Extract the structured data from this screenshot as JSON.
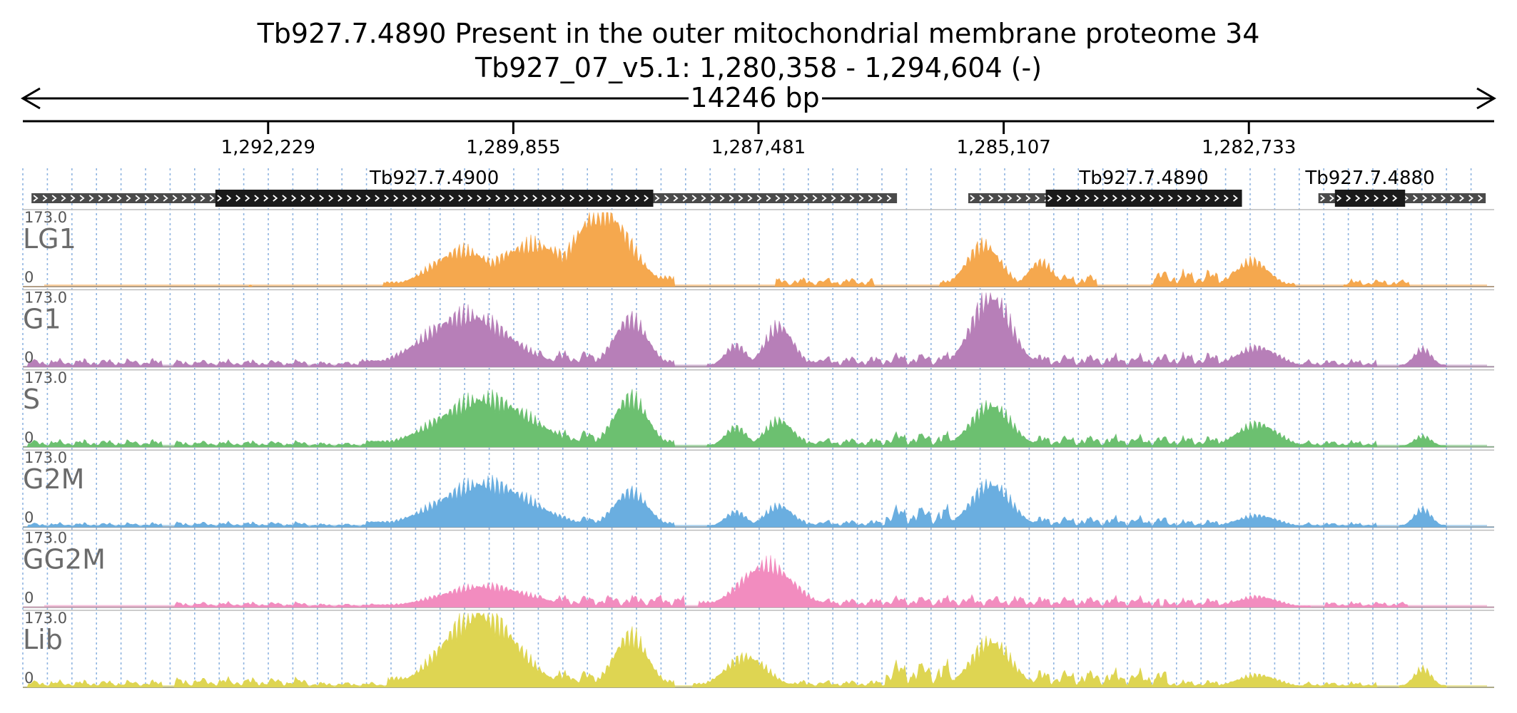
{
  "title": {
    "line1": "Tb927.7.4890  Present in the outer mitochondrial membrane proteome 34",
    "line2": "Tb927_07_v5.1: 1,280,358 - 1,294,604 (-)"
  },
  "chart_data": {
    "type": "area",
    "title": "Tb927.7.4890  Present in the outer mitochondrial membrane proteome 34",
    "region": {
      "chrom": "Tb927_07_v5.1",
      "start": 1280358,
      "end": 1294604,
      "strand": "-"
    },
    "span_label": "14246 bp",
    "ticks": [
      {
        "pos": 1292229,
        "label": "1,292,229"
      },
      {
        "pos": 1289855,
        "label": "1,289,855"
      },
      {
        "pos": 1287481,
        "label": "1,287,481"
      },
      {
        "pos": 1285107,
        "label": "1,285,107"
      },
      {
        "pos": 1282733,
        "label": "1,282,733"
      }
    ],
    "ylim": [
      0,
      173.0
    ],
    "y_max_label": "173.0",
    "y_min_label": "0",
    "genes": [
      {
        "name": "Tb927.7.4900",
        "utr_start": 1294520,
        "utr_end": 1286140,
        "cds_start": 1292740,
        "cds_end": 1288500
      },
      {
        "name": "Tb927.7.4890",
        "utr_start": 1285450,
        "utr_end": 1282800,
        "cds_start": 1284700,
        "cds_end": 1282800
      },
      {
        "name": "Tb927.7.4880",
        "utr_start": 1282060,
        "utr_end": 1280440,
        "cds_start": 1281900,
        "cds_end": 1281220
      }
    ],
    "series": [
      {
        "name": "LG1",
        "color": "#f5a84e",
        "clip": true,
        "peaks": [
          [
            1292400,
            20,
            6,
            50,
            1
          ],
          [
            1290340,
            770,
            82,
            300,
            1
          ],
          [
            1289660,
            980,
            95,
            460,
            1
          ],
          [
            1289000,
            700,
            173,
            620,
            1
          ],
          [
            1286840,
            480,
            20,
            160,
            0
          ],
          [
            1285300,
            430,
            95,
            200,
            1
          ],
          [
            1284750,
            310,
            56,
            150,
            1
          ],
          [
            1284480,
            280,
            28,
            100,
            0
          ],
          [
            1283250,
            430,
            38,
            140,
            0
          ],
          [
            1282700,
            420,
            58,
            150,
            1
          ],
          [
            1281500,
            320,
            16,
            80,
            0
          ]
        ]
      },
      {
        "name": "G1",
        "color": "#b77fb8",
        "clip": false,
        "peaks": [
          [
            1293900,
            650,
            18,
            110,
            0
          ],
          [
            1292500,
            650,
            16,
            100,
            0
          ],
          [
            1291400,
            420,
            12,
            60,
            0
          ],
          [
            1290300,
            1050,
            118,
            380,
            1
          ],
          [
            1289400,
            700,
            38,
            200,
            0
          ],
          [
            1288720,
            430,
            108,
            260,
            1
          ],
          [
            1287700,
            280,
            48,
            100,
            1
          ],
          [
            1287280,
            360,
            92,
            180,
            1
          ],
          [
            1286650,
            500,
            24,
            150,
            0
          ],
          [
            1285930,
            320,
            32,
            120,
            0
          ],
          [
            1285230,
            500,
            160,
            220,
            1
          ],
          [
            1284350,
            820,
            28,
            200,
            0
          ],
          [
            1283220,
            330,
            32,
            90,
            0
          ],
          [
            1282650,
            520,
            44,
            150,
            1
          ],
          [
            1281850,
            350,
            16,
            80,
            0
          ],
          [
            1281050,
            230,
            40,
            80,
            1
          ]
        ]
      },
      {
        "name": "S",
        "color": "#6cc070",
        "clip": false,
        "peaks": [
          [
            1293900,
            650,
            16,
            100,
            0
          ],
          [
            1292480,
            650,
            14,
            90,
            0
          ],
          [
            1291400,
            420,
            10,
            60,
            0
          ],
          [
            1290130,
            1150,
            110,
            400,
            1
          ],
          [
            1289400,
            700,
            40,
            200,
            0
          ],
          [
            1288720,
            430,
            112,
            260,
            1
          ],
          [
            1287700,
            280,
            44,
            100,
            1
          ],
          [
            1287280,
            360,
            60,
            180,
            1
          ],
          [
            1286650,
            500,
            20,
            150,
            0
          ],
          [
            1285930,
            320,
            34,
            120,
            0
          ],
          [
            1285230,
            500,
            95,
            220,
            1
          ],
          [
            1284350,
            820,
            26,
            200,
            0
          ],
          [
            1283220,
            330,
            24,
            90,
            0
          ],
          [
            1282650,
            520,
            52,
            150,
            1
          ],
          [
            1281850,
            350,
            14,
            80,
            0
          ],
          [
            1281050,
            230,
            24,
            80,
            1
          ]
        ]
      },
      {
        "name": "G2M",
        "color": "#6aaee0",
        "clip": false,
        "peaks": [
          [
            1293900,
            650,
            10,
            100,
            0
          ],
          [
            1292480,
            650,
            12,
            90,
            0
          ],
          [
            1291400,
            420,
            8,
            60,
            0
          ],
          [
            1290130,
            1150,
            100,
            400,
            1
          ],
          [
            1289400,
            700,
            26,
            200,
            0
          ],
          [
            1288720,
            430,
            80,
            260,
            1
          ],
          [
            1287700,
            280,
            34,
            100,
            1
          ],
          [
            1287280,
            360,
            48,
            180,
            1
          ],
          [
            1286650,
            500,
            16,
            150,
            0
          ],
          [
            1285930,
            320,
            50,
            120,
            0
          ],
          [
            1285230,
            500,
            98,
            220,
            1
          ],
          [
            1284350,
            820,
            24,
            200,
            0
          ],
          [
            1283220,
            330,
            16,
            90,
            0
          ],
          [
            1282650,
            520,
            26,
            150,
            1
          ],
          [
            1281850,
            350,
            10,
            80,
            0
          ],
          [
            1281050,
            230,
            40,
            80,
            1
          ]
        ]
      },
      {
        "name": "GG2M",
        "color": "#f28cbf",
        "clip": false,
        "peaks": [
          [
            1292480,
            650,
            12,
            90,
            0
          ],
          [
            1291400,
            420,
            8,
            60,
            0
          ],
          [
            1290130,
            1100,
            48,
            400,
            1
          ],
          [
            1289100,
            900,
            28,
            300,
            0
          ],
          [
            1287400,
            660,
            96,
            200,
            1
          ],
          [
            1286420,
            700,
            20,
            180,
            0
          ],
          [
            1285600,
            700,
            26,
            180,
            0
          ],
          [
            1284500,
            900,
            24,
            220,
            0
          ],
          [
            1283220,
            330,
            20,
            90,
            0
          ],
          [
            1282650,
            520,
            24,
            150,
            1
          ],
          [
            1281600,
            400,
            12,
            80,
            0
          ]
        ]
      },
      {
        "name": "Lib",
        "color": "#ded552",
        "clip": true,
        "peaks": [
          [
            1293900,
            650,
            16,
            100,
            0
          ],
          [
            1292480,
            650,
            22,
            90,
            0
          ],
          [
            1291400,
            420,
            12,
            60,
            0
          ],
          [
            1290180,
            900,
            173,
            400,
            1
          ],
          [
            1289400,
            700,
            40,
            200,
            0
          ],
          [
            1288720,
            430,
            118,
            260,
            1
          ],
          [
            1287600,
            520,
            70,
            180,
            1
          ],
          [
            1286650,
            500,
            16,
            150,
            0
          ],
          [
            1285930,
            320,
            62,
            120,
            0
          ],
          [
            1285230,
            500,
            105,
            220,
            1
          ],
          [
            1284350,
            820,
            40,
            200,
            0
          ],
          [
            1283220,
            330,
            16,
            90,
            0
          ],
          [
            1282650,
            520,
            28,
            150,
            1
          ],
          [
            1281850,
            350,
            12,
            80,
            0
          ],
          [
            1281050,
            230,
            42,
            80,
            1
          ]
        ]
      }
    ]
  }
}
